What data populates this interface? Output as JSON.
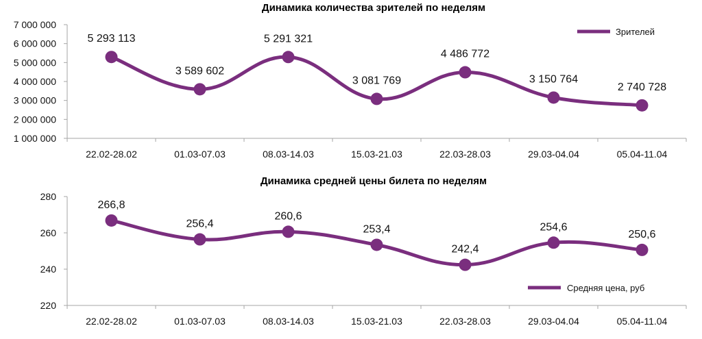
{
  "chart_data": [
    {
      "type": "line",
      "title": "Динамика количества зрителей по неделям",
      "categories": [
        "22.02-28.02",
        "01.03-07.03",
        "08.03-14.03",
        "15.03-21.03",
        "22.03-28.03",
        "29.03-04.04",
        "05.04-11.04"
      ],
      "series": [
        {
          "name": "Зрителей",
          "values": [
            5293113,
            3589602,
            5291321,
            3081769,
            4486772,
            3150764,
            2740728
          ]
        }
      ],
      "data_labels": [
        "5 293 113",
        "3 589 602",
        "5 291 321",
        "3 081 769",
        "4 486 772",
        "3 150 764",
        "2 740 728"
      ],
      "y_ticks": [
        "1 000 000",
        "2 000 000",
        "3 000 000",
        "4 000 000",
        "5 000 000",
        "6 000 000",
        "7 000 000"
      ],
      "ylim": [
        1000000,
        7000000
      ],
      "grid": false,
      "smooth": true,
      "legend": "top-right",
      "color": "#7a2e7e"
    },
    {
      "type": "line",
      "title": "Динамика средней цены билета по неделям",
      "categories": [
        "22.02-28.02",
        "01.03-07.03",
        "08.03-14.03",
        "15.03-21.03",
        "22.03-28.03",
        "29.03-04.04",
        "05.04-11.04"
      ],
      "series": [
        {
          "name": "Средняя цена, руб",
          "values": [
            266.8,
            256.4,
            260.6,
            253.4,
            242.4,
            254.6,
            250.6
          ]
        }
      ],
      "data_labels": [
        "266,8",
        "256,4",
        "260,6",
        "253,4",
        "242,4",
        "254,6",
        "250,6"
      ],
      "y_ticks": [
        "220",
        "240",
        "260",
        "280"
      ],
      "ylim": [
        220,
        280
      ],
      "grid": false,
      "smooth": true,
      "legend": "bottom-right",
      "color": "#7a2e7e"
    }
  ]
}
